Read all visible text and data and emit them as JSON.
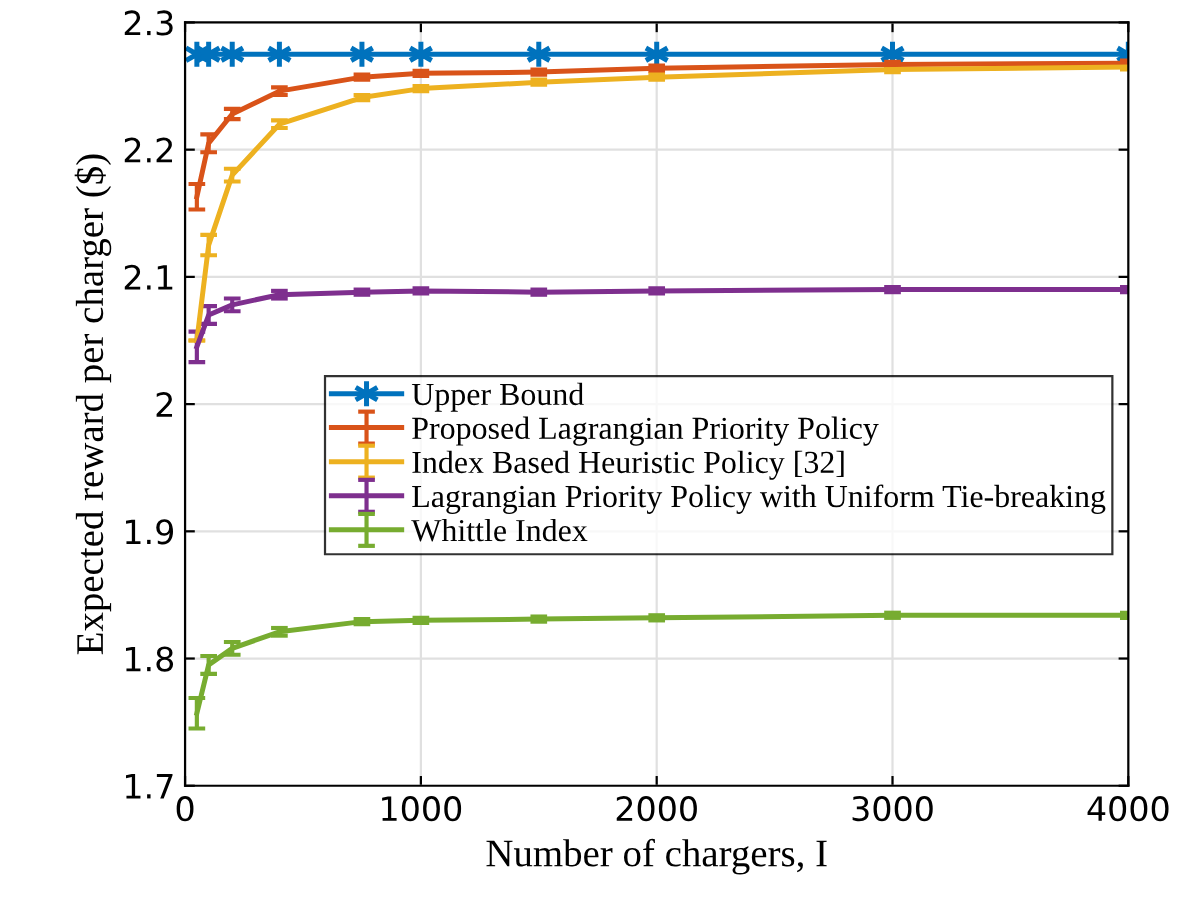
{
  "chart_data": {
    "type": "line",
    "xlabel": "Number of chargers, I",
    "ylabel": "Expected reward per charger ($)",
    "x": [
      50,
      100,
      200,
      400,
      750,
      1000,
      1500,
      2000,
      3000,
      4000
    ],
    "xlim": [
      0,
      4000
    ],
    "xticks": [
      0,
      1000,
      2000,
      3000,
      4000
    ],
    "ylim": [
      1.7,
      2.3
    ],
    "yticks": [
      1.7,
      1.8,
      1.9,
      2,
      2.1,
      2.2,
      2.3
    ],
    "grid": true,
    "legend": "right",
    "line_style": "solid",
    "series": [
      {
        "name": "Upper Bound",
        "color": "#0072bd",
        "marker": "cross",
        "values": [
          2.275,
          2.275,
          2.275,
          2.275,
          2.275,
          2.275,
          2.275,
          2.275,
          2.275,
          2.275
        ]
      },
      {
        "name": "Proposed Lagrangian Priority Policy",
        "color": "#d95319",
        "marker": "none",
        "values": [
          2.163,
          2.205,
          2.228,
          2.246,
          2.257,
          2.26,
          2.261,
          2.264,
          2.267,
          2.268
        ],
        "errors": [
          0.01,
          0.007,
          0.004,
          0.003,
          0.002,
          0.002,
          0.002,
          0.002,
          0.002,
          0.002
        ]
      },
      {
        "name": "Index Based Heuristic Policy [32]",
        "color": "#edb120",
        "marker": "none",
        "values": [
          2.05,
          2.125,
          2.18,
          2.22,
          2.241,
          2.248,
          2.253,
          2.257,
          2.263,
          2.265
        ],
        "errors": [
          null,
          0.008,
          0.005,
          0.003,
          0.002,
          0.002,
          0.002,
          0.002,
          0.002,
          0.002
        ]
      },
      {
        "name": "Lagrangian Priority Policy with Uniform Tie-breaking",
        "color": "#7e2f8e",
        "marker": "none",
        "values": [
          2.045,
          2.07,
          2.078,
          2.086,
          2.088,
          2.089,
          2.088,
          2.089,
          2.09,
          2.09
        ],
        "errors": [
          0.012,
          0.007,
          0.005,
          0.003,
          0.002,
          0.002,
          0.002,
          0.002,
          0.002,
          0.002
        ]
      },
      {
        "name": "Whittle Index",
        "color": "#77ac30",
        "marker": "none",
        "values": [
          1.757,
          1.795,
          1.808,
          1.821,
          1.829,
          1.83,
          1.831,
          1.832,
          1.834,
          1.834
        ],
        "errors": [
          0.012,
          0.007,
          0.005,
          0.003,
          0.002,
          0.002,
          0.002,
          0.002,
          0.002,
          0.002
        ]
      }
    ]
  }
}
